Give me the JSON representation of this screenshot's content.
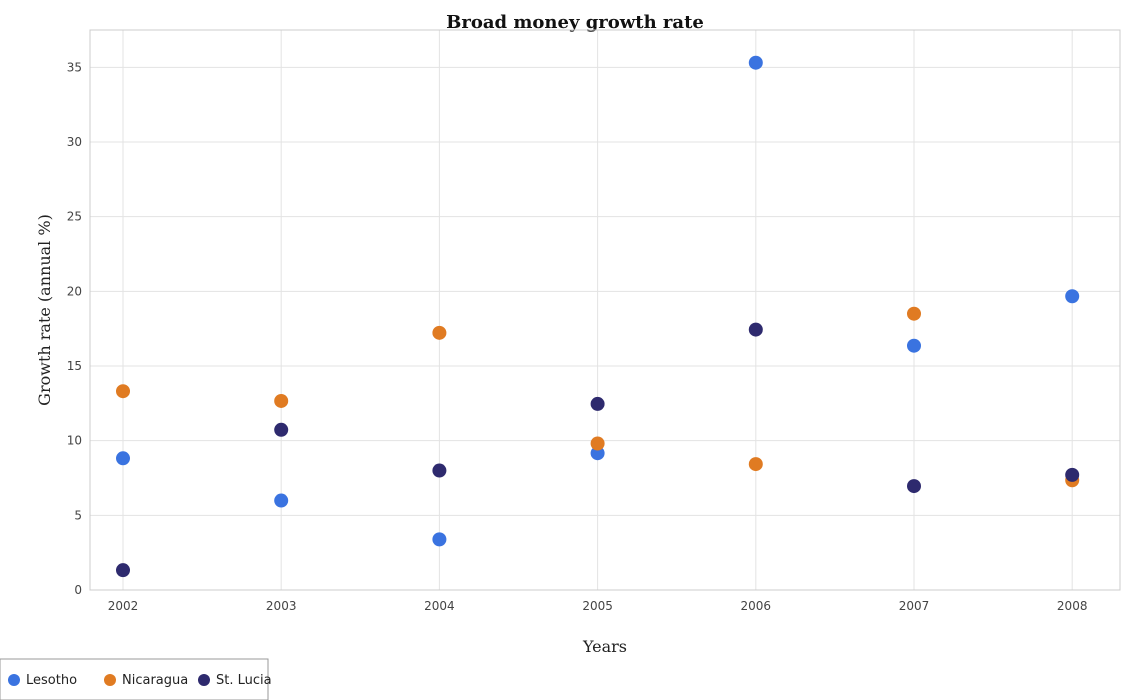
{
  "chart_data": {
    "type": "scatter",
    "title": "Broad money growth rate",
    "xlabel": "Years",
    "ylabel": "Growth rate (annual %)",
    "categories": [
      "2002",
      "2003",
      "2004",
      "2005",
      "2006",
      "2007",
      "2008"
    ],
    "ylim": [
      0,
      37.5
    ],
    "yticks": [
      0,
      5,
      10,
      15,
      20,
      25,
      30,
      35
    ],
    "ytick_labels": [
      "0",
      "5",
      "10",
      "15",
      "20",
      "25",
      "30",
      "35"
    ],
    "grid": true,
    "legend_position": "bottom-left",
    "series": [
      {
        "name": "Lesotho",
        "color": "#3a73e0",
        "values": [
          8.82,
          5.99,
          3.39,
          9.16,
          35.31,
          16.36,
          19.67
        ]
      },
      {
        "name": "Nicaragua",
        "color": "#e07b22",
        "values": [
          13.31,
          12.66,
          17.22,
          9.81,
          8.43,
          18.5,
          7.35
        ]
      },
      {
        "name": "St. Lucia",
        "color": "#2e2a6e",
        "values": [
          1.33,
          10.73,
          8.0,
          12.46,
          17.44,
          6.96,
          7.71
        ]
      }
    ]
  }
}
